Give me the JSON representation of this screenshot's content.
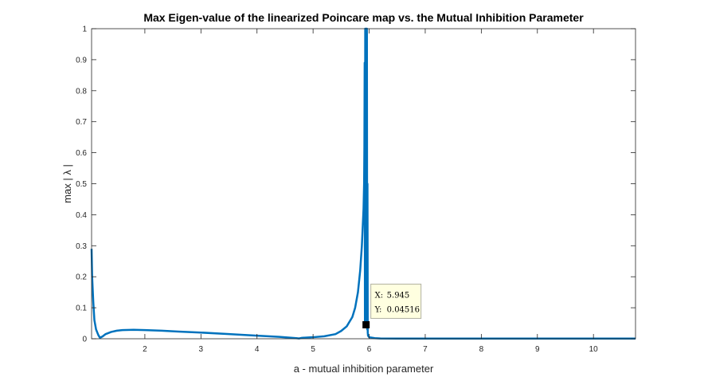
{
  "chart_data": {
    "type": "line",
    "title": "Max Eigen-value of the linearized Poincare map vs. the Mutual Inhibition Parameter",
    "xlabel": "a - mutual inhibition parameter",
    "ylabel": "max | λ |",
    "xlim": [
      1.05,
      10.75
    ],
    "ylim": [
      0,
      1
    ],
    "xticks": [
      2,
      3,
      4,
      5,
      6,
      7,
      8,
      9,
      10
    ],
    "yticks": [
      0,
      0.1,
      0.2,
      0.3,
      0.4,
      0.5,
      0.6,
      0.7,
      0.8,
      0.9,
      1
    ],
    "grid": false,
    "series": [
      {
        "color": "#0072bd",
        "x": [
          1.05,
          1.06,
          1.08,
          1.1,
          1.13,
          1.17,
          1.2,
          1.25,
          1.3,
          1.4,
          1.5,
          1.6,
          1.8,
          2.0,
          2.3,
          2.6,
          3.0,
          3.5,
          4.0,
          4.4,
          4.7,
          4.75,
          4.8,
          5.0,
          5.2,
          5.4,
          5.5,
          5.6,
          5.7,
          5.75,
          5.8,
          5.84,
          5.87,
          5.9,
          5.91,
          5.915,
          5.92,
          5.925,
          5.93,
          5.935,
          5.94,
          5.945,
          5.95,
          5.955,
          5.96,
          5.965,
          5.97,
          5.975,
          5.98,
          6.0,
          6.1,
          6.2,
          6.5,
          7.0,
          8.0,
          9.0,
          10.0,
          10.75
        ],
        "y": [
          0.29,
          0.2,
          0.12,
          0.06,
          0.03,
          0.012,
          0.003,
          0.008,
          0.015,
          0.022,
          0.026,
          0.028,
          0.029,
          0.028,
          0.026,
          0.023,
          0.02,
          0.015,
          0.01,
          0.006,
          0.002,
          0.001,
          0.003,
          0.005,
          0.008,
          0.015,
          0.025,
          0.04,
          0.07,
          0.1,
          0.15,
          0.22,
          0.3,
          0.42,
          0.5,
          0.62,
          0.89,
          0.045,
          1.0,
          0.05,
          1.0,
          0.04516,
          1.0,
          0.045,
          1.0,
          0.03,
          0.5,
          0.02,
          0.01,
          0.005,
          0.002,
          0.001,
          0.0008,
          0.0006,
          0.0005,
          0.0005,
          0.0005,
          0.0005
        ]
      }
    ],
    "datatip": {
      "x_label": "X:",
      "x_value": "5.945",
      "y_label": "Y:",
      "y_value": "0.04516",
      "x": 5.945,
      "y": 0.04516
    }
  }
}
